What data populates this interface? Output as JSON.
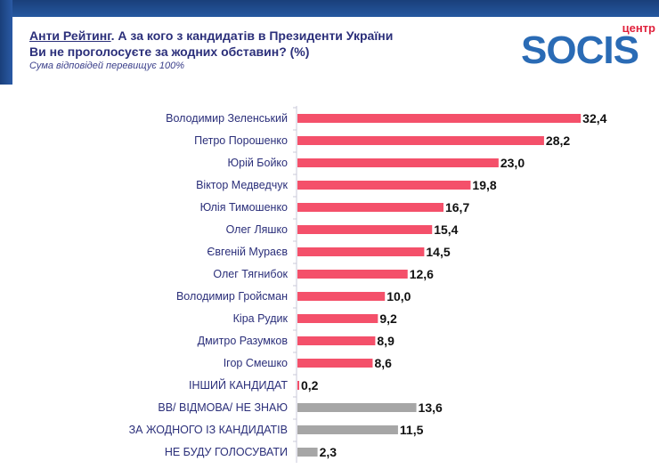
{
  "header": {
    "title_link": "Анти Рейтинг",
    "title_rest": ". А за кого з кандидатів в Президенти України Ви не проголосуєте за жодних обставин? (%)",
    "subtitle": "Сума відповідей перевищує 100%",
    "logo_text": "SOCIS",
    "logo_small": "центр"
  },
  "chart_data": {
    "type": "bar",
    "orientation": "horizontal",
    "categories": [
      "Володимир Зеленський",
      "Петро Порошенко",
      "Юрій Бойко",
      "Віктор Медведчук",
      "Юлія Тимошенко",
      "Олег Ляшко",
      "Євгеній Мураєв",
      "Олег Тягнибок",
      "Володимир Гройсман",
      "Кіра Рудик",
      "Дмитро Разумков",
      "Ігор Смешко",
      "ІНШИЙ КАНДИДАТ",
      "ВВ/ ВІДМОВА/ НЕ ЗНАЮ",
      "ЗА ЖОДНОГО ІЗ КАНДИДАТІВ",
      "НЕ БУДУ ГОЛОСУВАТИ"
    ],
    "values": [
      32.4,
      28.2,
      23.0,
      19.8,
      16.7,
      15.4,
      14.5,
      12.6,
      10.0,
      9.2,
      8.9,
      8.6,
      0.2,
      13.6,
      11.5,
      2.3
    ],
    "value_labels": [
      "32,4",
      "28,2",
      "23,0",
      "19,8",
      "16,7",
      "15,4",
      "14,5",
      "12,6",
      "10,0",
      "9,2",
      "8,9",
      "8,6",
      "0,2",
      "13,6",
      "11,5",
      "2,3"
    ],
    "colors": [
      "#f4506a",
      "#f4506a",
      "#f4506a",
      "#f4506a",
      "#f4506a",
      "#f4506a",
      "#f4506a",
      "#f4506a",
      "#f4506a",
      "#f4506a",
      "#f4506a",
      "#f4506a",
      "#f4506a",
      "#a6a6a6",
      "#a6a6a6",
      "#a6a6a6"
    ],
    "xlim": [
      0,
      35
    ],
    "grid": false
  }
}
